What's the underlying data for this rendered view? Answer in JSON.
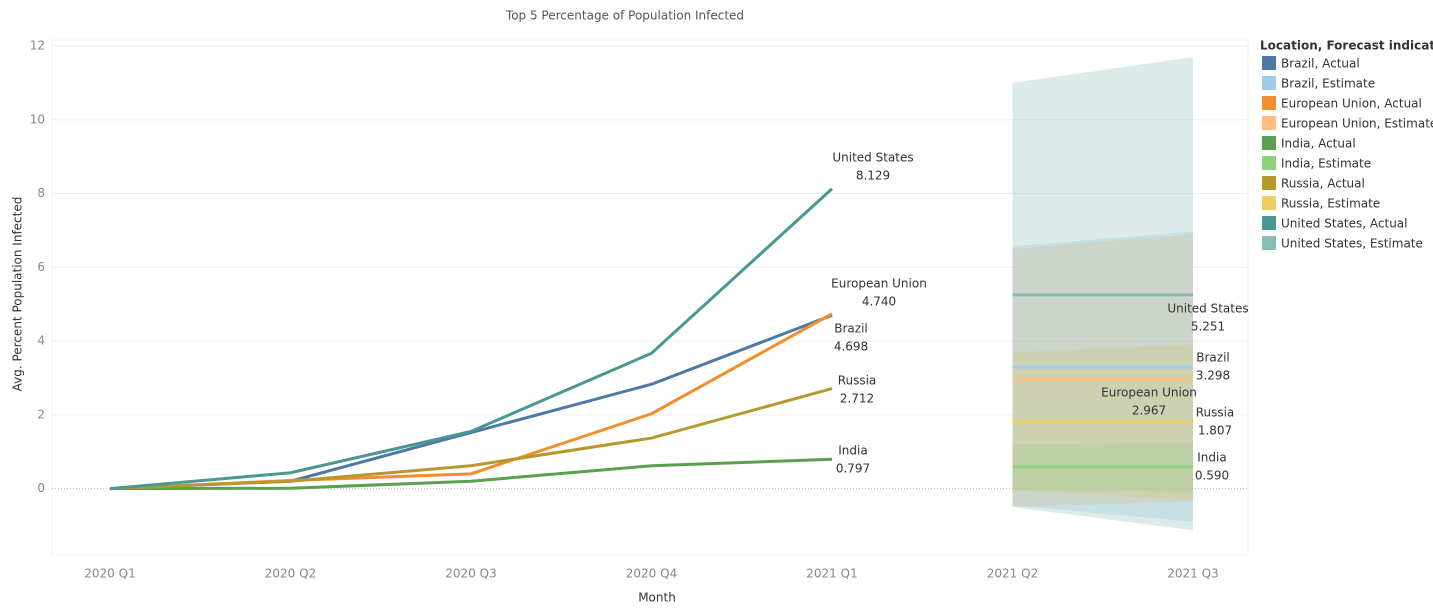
{
  "chart_data": {
    "type": "line",
    "title": "Top 5 Percentage of Population Infected",
    "xlabel": "Month",
    "ylabel": "Avg. Percent Population Infected",
    "legend_title": "Location, Forecast indicator",
    "legend_position": "right",
    "grid": true,
    "categories": [
      "2020 Q1",
      "2020 Q2",
      "2020 Q3",
      "2020 Q4",
      "2021 Q1",
      "2021 Q2",
      "2021 Q3"
    ],
    "ylim": [
      -1.8,
      12
    ],
    "yticks": [
      0,
      2,
      4,
      6,
      8,
      10,
      12
    ],
    "series": [
      {
        "name": "Brazil, Actual",
        "label": "Brazil",
        "color": "#4e79a7",
        "values": [
          0,
          0.2,
          1.52,
          2.83,
          4.698,
          null,
          null
        ],
        "value_labels": [
          null,
          null,
          null,
          null,
          "4.698",
          null,
          null
        ]
      },
      {
        "name": "Brazil, Estimate",
        "label": "Brazil",
        "color": "#a0cbe8",
        "values": [
          null,
          null,
          null,
          null,
          null,
          3.298,
          3.298
        ],
        "upper": [
          null,
          null,
          null,
          null,
          null,
          6.57,
          6.97
        ],
        "lower": [
          null,
          null,
          null,
          null,
          null,
          -0.45,
          -0.9
        ],
        "value_labels": [
          null,
          null,
          null,
          null,
          null,
          null,
          "3.298"
        ]
      },
      {
        "name": "European Union, Actual",
        "label": "European Union",
        "color": "#f28e2b",
        "values": [
          0,
          0.22,
          0.4,
          2.03,
          4.74,
          null,
          null
        ],
        "value_labels": [
          null,
          null,
          null,
          null,
          "4.740",
          null,
          null
        ]
      },
      {
        "name": "European Union, Estimate",
        "label": "European Union",
        "color": "#ffbe7d",
        "values": [
          null,
          null,
          null,
          null,
          null,
          2.967,
          2.967
        ],
        "upper": [
          null,
          null,
          null,
          null,
          null,
          6.5,
          6.9
        ],
        "lower": [
          null,
          null,
          null,
          null,
          null,
          -0.5,
          -0.35
        ],
        "value_labels": [
          null,
          null,
          null,
          null,
          null,
          null,
          "2.967"
        ]
      },
      {
        "name": "India, Actual",
        "label": "India",
        "color": "#59a14f",
        "values": [
          0,
          0.01,
          0.2,
          0.62,
          0.797,
          null,
          null
        ],
        "value_labels": [
          null,
          null,
          null,
          null,
          "0.797",
          null,
          null
        ]
      },
      {
        "name": "India, Estimate",
        "label": "India",
        "color": "#8cd17d",
        "values": [
          null,
          null,
          null,
          null,
          null,
          0.59,
          0.59
        ],
        "upper": [
          null,
          null,
          null,
          null,
          null,
          1.2,
          1.25
        ],
        "lower": [
          null,
          null,
          null,
          null,
          null,
          -0.05,
          -0.1
        ],
        "value_labels": [
          null,
          null,
          null,
          null,
          null,
          null,
          "0.590"
        ]
      },
      {
        "name": "Russia, Actual",
        "label": "Russia",
        "color": "#b6992d",
        "values": [
          0,
          0.2,
          0.62,
          1.37,
          2.712,
          null,
          null
        ],
        "value_labels": [
          null,
          null,
          null,
          null,
          "2.712",
          null,
          null
        ]
      },
      {
        "name": "Russia, Estimate",
        "label": "Russia",
        "color": "#f1ce63",
        "values": [
          null,
          null,
          null,
          null,
          null,
          1.807,
          1.807
        ],
        "upper": [
          null,
          null,
          null,
          null,
          null,
          3.7,
          3.9
        ],
        "lower": [
          null,
          null,
          null,
          null,
          null,
          -0.05,
          -0.3
        ],
        "value_labels": [
          null,
          null,
          null,
          null,
          null,
          null,
          "1.807"
        ]
      },
      {
        "name": "United States, Actual",
        "label": "United States",
        "color": "#499894",
        "values": [
          0,
          0.43,
          1.55,
          3.67,
          8.129,
          null,
          null
        ],
        "value_labels": [
          null,
          null,
          null,
          null,
          "8.129",
          null,
          null
        ]
      },
      {
        "name": "United States, Estimate",
        "label": "United States",
        "color": "#86bcb6",
        "values": [
          null,
          null,
          null,
          null,
          null,
          5.251,
          5.251
        ],
        "upper": [
          null,
          null,
          null,
          null,
          null,
          11.0,
          11.7
        ],
        "lower": [
          null,
          null,
          null,
          null,
          null,
          -0.5,
          -1.13
        ],
        "value_labels": [
          null,
          null,
          null,
          null,
          null,
          null,
          "5.251"
        ]
      }
    ]
  }
}
